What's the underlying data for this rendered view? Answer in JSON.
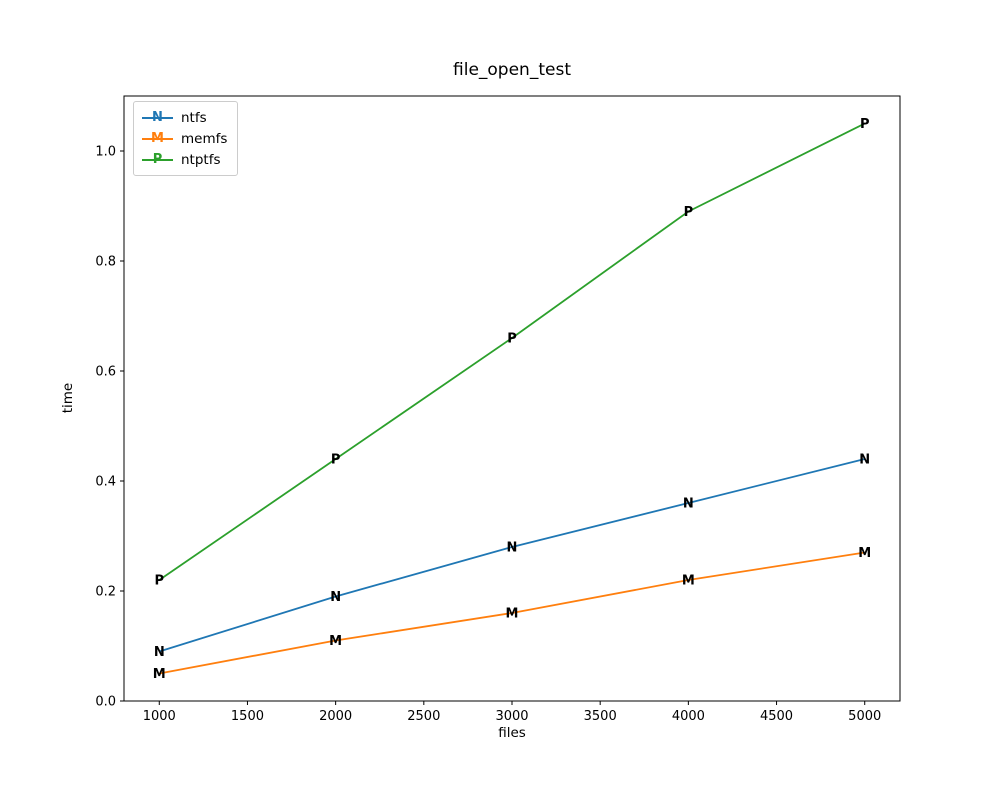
{
  "chart_data": {
    "type": "line",
    "title": "file_open_test",
    "xlabel": "files",
    "ylabel": "time",
    "x": [
      1000,
      2000,
      3000,
      4000,
      5000
    ],
    "series": [
      {
        "name": "ntfs",
        "marker": "N",
        "color": "#1f77b4",
        "values": [
          0.09,
          0.19,
          0.28,
          0.36,
          0.44
        ]
      },
      {
        "name": "memfs",
        "marker": "M",
        "color": "#ff7f0e",
        "values": [
          0.05,
          0.11,
          0.16,
          0.22,
          0.27
        ]
      },
      {
        "name": "ntptfs",
        "marker": "P",
        "color": "#2ca02c",
        "values": [
          0.22,
          0.44,
          0.66,
          0.89,
          1.05
        ]
      }
    ],
    "xlim": [
      800,
      5200
    ],
    "ylim": [
      0,
      1.1
    ],
    "xticks": [
      1000,
      1500,
      2000,
      2500,
      3000,
      3500,
      4000,
      4500,
      5000
    ],
    "yticks": [
      0.0,
      0.2,
      0.4,
      0.6,
      0.8,
      1.0
    ],
    "grid": false,
    "legend_position": "upper left",
    "axis_color": "#000000",
    "background": "#ffffff"
  }
}
